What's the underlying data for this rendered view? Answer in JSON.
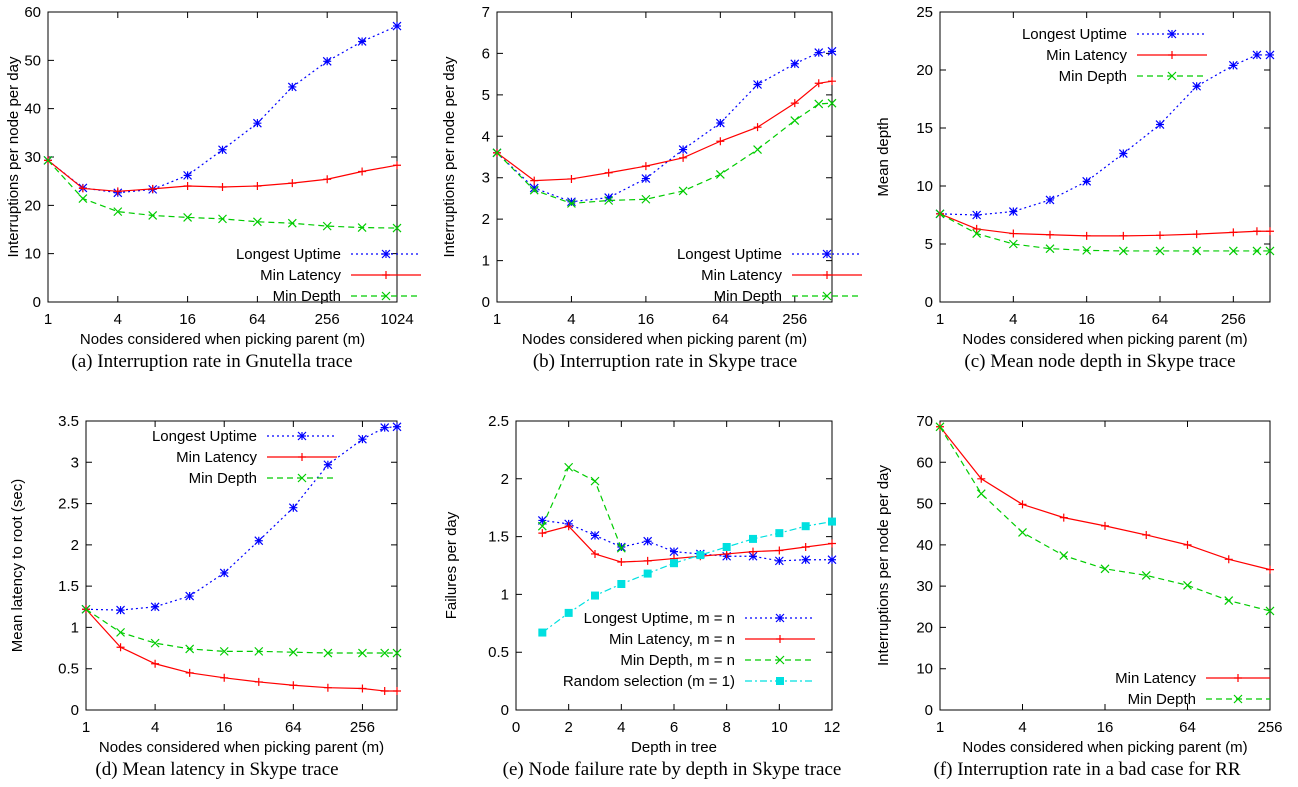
{
  "colors": {
    "longest_uptime": "#0000ff",
    "min_latency": "#ff0000",
    "min_depth": "#00cc00",
    "random_selection": "#00e0e0",
    "axes": "#000000",
    "background": "#ffffff"
  },
  "chart_data": [
    {
      "type": "line",
      "caption": "(a) Interruption rate in Gnutella trace",
      "xlabel": "Nodes considered when picking parent (m)",
      "ylabel": "Interruptions per node per day",
      "xscale": "log2",
      "xlim": [
        1,
        1024
      ],
      "ylim": [
        0,
        60
      ],
      "xticks": [
        1,
        4,
        16,
        64,
        256,
        1024
      ],
      "xtick_labels": [
        "1",
        "4",
        "16",
        "64",
        "256",
        "1024"
      ],
      "yticks": [
        0,
        10,
        20,
        30,
        40,
        50,
        60
      ],
      "ytick_labels": [
        "0",
        "10",
        "20",
        "30",
        "40",
        "50",
        "60"
      ],
      "legend_position": "bottom-right",
      "series": [
        {
          "name": "Longest Uptime",
          "color": "#0000ff",
          "dash": "dotted",
          "marker": "star",
          "x": [
            1,
            2,
            4,
            8,
            16,
            32,
            64,
            128,
            256,
            512,
            1024
          ],
          "y": [
            29.3,
            23.6,
            22.6,
            23.3,
            26.2,
            31.5,
            37.0,
            44.5,
            49.8,
            53.9,
            57.1
          ]
        },
        {
          "name": "Min Latency",
          "color": "#ff0000",
          "dash": "solid",
          "marker": "plus",
          "x": [
            1,
            2,
            4,
            8,
            16,
            32,
            64,
            128,
            256,
            512,
            1024
          ],
          "y": [
            29.3,
            23.5,
            22.9,
            23.4,
            24.0,
            23.8,
            24.0,
            24.6,
            25.4,
            27.0,
            28.3
          ]
        },
        {
          "name": "Min Depth",
          "color": "#00cc00",
          "dash": "dashed",
          "marker": "cross",
          "x": [
            1,
            2,
            4,
            8,
            16,
            32,
            64,
            128,
            256,
            512,
            1024
          ],
          "y": [
            29.3,
            21.4,
            18.7,
            17.9,
            17.5,
            17.2,
            16.6,
            16.3,
            15.7,
            15.4,
            15.3
          ]
        }
      ]
    },
    {
      "type": "line",
      "caption": "(b) Interruption rate in Skype trace",
      "xlabel": "Nodes considered when picking parent (m)",
      "ylabel": "Interruptions per node per day",
      "xscale": "log2",
      "xlim": [
        1,
        512
      ],
      "ylim": [
        0,
        7
      ],
      "xticks": [
        1,
        4,
        16,
        64,
        256
      ],
      "xtick_labels": [
        "1",
        "4",
        "16",
        "64",
        "256"
      ],
      "yticks": [
        0,
        1,
        2,
        3,
        4,
        5,
        6,
        7
      ],
      "ytick_labels": [
        "0",
        "1",
        "2",
        "3",
        "4",
        "5",
        "6",
        "7"
      ],
      "legend_position": "bottom-right",
      "series": [
        {
          "name": "Longest Uptime",
          "color": "#0000ff",
          "dash": "dotted",
          "marker": "star",
          "x": [
            1,
            2,
            4,
            8,
            16,
            32,
            64,
            128,
            256,
            400,
            512
          ],
          "y": [
            3.6,
            2.75,
            2.42,
            2.52,
            2.98,
            3.68,
            4.32,
            5.25,
            5.75,
            6.02,
            6.05
          ]
        },
        {
          "name": "Min Latency",
          "color": "#ff0000",
          "dash": "solid",
          "marker": "plus",
          "x": [
            1,
            2,
            4,
            8,
            16,
            32,
            64,
            128,
            256,
            400,
            512
          ],
          "y": [
            3.6,
            2.93,
            2.97,
            3.12,
            3.28,
            3.48,
            3.88,
            4.22,
            4.8,
            5.28,
            5.33
          ]
        },
        {
          "name": "Min Depth",
          "color": "#00cc00",
          "dash": "dashed",
          "marker": "cross",
          "x": [
            1,
            2,
            4,
            8,
            16,
            32,
            64,
            128,
            256,
            400,
            512
          ],
          "y": [
            3.6,
            2.7,
            2.38,
            2.45,
            2.48,
            2.68,
            3.08,
            3.68,
            4.38,
            4.78,
            4.8
          ]
        }
      ]
    },
    {
      "type": "line",
      "caption": "(c) Mean node depth in Skype trace",
      "xlabel": "Nodes considered when picking parent (m)",
      "ylabel": "Mean depth",
      "xscale": "log2",
      "xlim": [
        1,
        512
      ],
      "ylim": [
        0,
        25
      ],
      "xticks": [
        1,
        4,
        16,
        64,
        256
      ],
      "xtick_labels": [
        "1",
        "4",
        "16",
        "64",
        "256"
      ],
      "yticks": [
        0,
        5,
        10,
        15,
        20,
        25
      ],
      "ytick_labels": [
        "0",
        "5",
        "10",
        "15",
        "20",
        "25"
      ],
      "legend_position": "top-left",
      "series": [
        {
          "name": "Longest Uptime",
          "color": "#0000ff",
          "dash": "dotted",
          "marker": "star",
          "x": [
            1,
            2,
            4,
            8,
            16,
            32,
            64,
            128,
            256,
            400,
            512
          ],
          "y": [
            7.6,
            7.5,
            7.8,
            8.8,
            10.4,
            12.8,
            15.3,
            18.6,
            20.4,
            21.3,
            21.3
          ]
        },
        {
          "name": "Min Latency",
          "color": "#ff0000",
          "dash": "solid",
          "marker": "plus",
          "x": [
            1,
            2,
            4,
            8,
            16,
            32,
            64,
            128,
            256,
            400,
            512
          ],
          "y": [
            7.6,
            6.3,
            5.9,
            5.8,
            5.7,
            5.7,
            5.75,
            5.85,
            6.0,
            6.1,
            6.1
          ]
        },
        {
          "name": "Min Depth",
          "color": "#00cc00",
          "dash": "dashed",
          "marker": "cross",
          "x": [
            1,
            2,
            4,
            8,
            16,
            32,
            64,
            128,
            256,
            400,
            512
          ],
          "y": [
            7.6,
            5.9,
            5.0,
            4.6,
            4.45,
            4.4,
            4.4,
            4.4,
            4.4,
            4.4,
            4.4
          ]
        }
      ]
    },
    {
      "type": "line",
      "caption": "(d) Mean latency in Skype trace",
      "xlabel": "Nodes considered when picking parent (m)",
      "ylabel": "Mean latency to root (sec)",
      "xscale": "log2",
      "xlim": [
        1,
        512
      ],
      "ylim": [
        0,
        3.5
      ],
      "xticks": [
        1,
        4,
        16,
        64,
        256
      ],
      "xtick_labels": [
        "1",
        "4",
        "16",
        "64",
        "256"
      ],
      "yticks": [
        0,
        0.5,
        1,
        1.5,
        2,
        2.5,
        3,
        3.5
      ],
      "ytick_labels": [
        "0",
        "0.5",
        "1",
        "1.5",
        "2",
        "2.5",
        "3",
        "3.5"
      ],
      "legend_position": "top-left",
      "series": [
        {
          "name": "Longest Uptime",
          "color": "#0000ff",
          "dash": "dotted",
          "marker": "star",
          "x": [
            1,
            2,
            4,
            8,
            16,
            32,
            64,
            128,
            256,
            400,
            512
          ],
          "y": [
            1.22,
            1.21,
            1.25,
            1.38,
            1.66,
            2.05,
            2.45,
            2.97,
            3.28,
            3.42,
            3.43
          ]
        },
        {
          "name": "Min Latency",
          "color": "#ff0000",
          "dash": "solid",
          "marker": "plus",
          "x": [
            1,
            2,
            4,
            8,
            16,
            32,
            64,
            128,
            256,
            400,
            512
          ],
          "y": [
            1.22,
            0.76,
            0.56,
            0.45,
            0.39,
            0.34,
            0.3,
            0.27,
            0.26,
            0.23,
            0.23
          ]
        },
        {
          "name": "Min Depth",
          "color": "#00cc00",
          "dash": "dashed",
          "marker": "cross",
          "x": [
            1,
            2,
            4,
            8,
            16,
            32,
            64,
            128,
            256,
            400,
            512
          ],
          "y": [
            1.22,
            0.94,
            0.81,
            0.74,
            0.71,
            0.71,
            0.7,
            0.69,
            0.69,
            0.69,
            0.69
          ]
        }
      ]
    },
    {
      "type": "line",
      "caption": "(e) Node failure rate by depth in Skype trace",
      "xlabel": "Depth in tree",
      "ylabel": "Failures per day",
      "xscale": "linear",
      "xlim": [
        0,
        12
      ],
      "ylim": [
        0,
        2.5
      ],
      "xticks": [
        0,
        2,
        4,
        6,
        8,
        10,
        12
      ],
      "xtick_labels": [
        "0",
        "2",
        "4",
        "6",
        "8",
        "10",
        "12"
      ],
      "yticks": [
        0,
        0.5,
        1,
        1.5,
        2,
        2.5
      ],
      "ytick_labels": [
        "0",
        "0.5",
        "1",
        "1.5",
        "2",
        "2.5"
      ],
      "legend_position": "bottom-right",
      "series": [
        {
          "name": "Longest Uptime, m = n",
          "color": "#0000ff",
          "dash": "dotted",
          "marker": "star",
          "x": [
            1,
            2,
            3,
            4,
            5,
            6,
            7,
            8,
            9,
            10,
            11,
            12
          ],
          "y": [
            1.64,
            1.61,
            1.51,
            1.41,
            1.46,
            1.37,
            1.35,
            1.33,
            1.33,
            1.29,
            1.3,
            1.3
          ]
        },
        {
          "name": "Min Latency, m = n",
          "color": "#ff0000",
          "dash": "solid",
          "marker": "plus",
          "x": [
            1,
            2,
            3,
            4,
            5,
            6,
            7,
            8,
            9,
            10,
            11,
            12
          ],
          "y": [
            1.53,
            1.59,
            1.35,
            1.28,
            1.29,
            1.31,
            1.33,
            1.35,
            1.37,
            1.38,
            1.41,
            1.44
          ]
        },
        {
          "name": "Min Depth, m = n",
          "color": "#00cc00",
          "dash": "dashed",
          "marker": "cross",
          "x": [
            1,
            2,
            3,
            4
          ],
          "y": [
            1.59,
            2.1,
            1.98,
            1.4
          ]
        },
        {
          "name": "Random selection (m = 1)",
          "color": "#00e0e0",
          "dash": "dashdot",
          "marker": "square",
          "x": [
            1,
            2,
            3,
            4,
            5,
            6,
            7,
            8,
            9,
            10,
            11,
            12
          ],
          "y": [
            0.67,
            0.84,
            0.99,
            1.09,
            1.18,
            1.27,
            1.34,
            1.41,
            1.48,
            1.53,
            1.59,
            1.63
          ]
        }
      ]
    },
    {
      "type": "line",
      "caption": "(f) Interruption rate in a bad case for RR",
      "xlabel": "Nodes considered when picking parent (m)",
      "ylabel": "Interruptions per node per day",
      "xscale": "log2",
      "xlim": [
        1,
        256
      ],
      "ylim": [
        0,
        70
      ],
      "xticks": [
        1,
        4,
        16,
        64,
        256
      ],
      "xtick_labels": [
        "1",
        "4",
        "16",
        "64",
        "256"
      ],
      "yticks": [
        0,
        10,
        20,
        30,
        40,
        50,
        60,
        70
      ],
      "ytick_labels": [
        "0",
        "10",
        "20",
        "30",
        "40",
        "50",
        "60",
        "70"
      ],
      "legend_position": "bottom-right",
      "series": [
        {
          "name": "Min Latency",
          "color": "#ff0000",
          "dash": "solid",
          "marker": "plus",
          "x": [
            1,
            2,
            4,
            8,
            16,
            32,
            64,
            128,
            256
          ],
          "y": [
            68.6,
            56.0,
            49.8,
            46.6,
            44.6,
            42.4,
            40.0,
            36.5,
            34.0
          ]
        },
        {
          "name": "Min Depth",
          "color": "#00cc00",
          "dash": "dashed",
          "marker": "cross",
          "x": [
            1,
            2,
            4,
            8,
            16,
            32,
            64,
            128,
            256
          ],
          "y": [
            68.6,
            52.4,
            43.0,
            37.4,
            34.2,
            32.6,
            30.2,
            26.5,
            24.0
          ]
        }
      ]
    }
  ]
}
